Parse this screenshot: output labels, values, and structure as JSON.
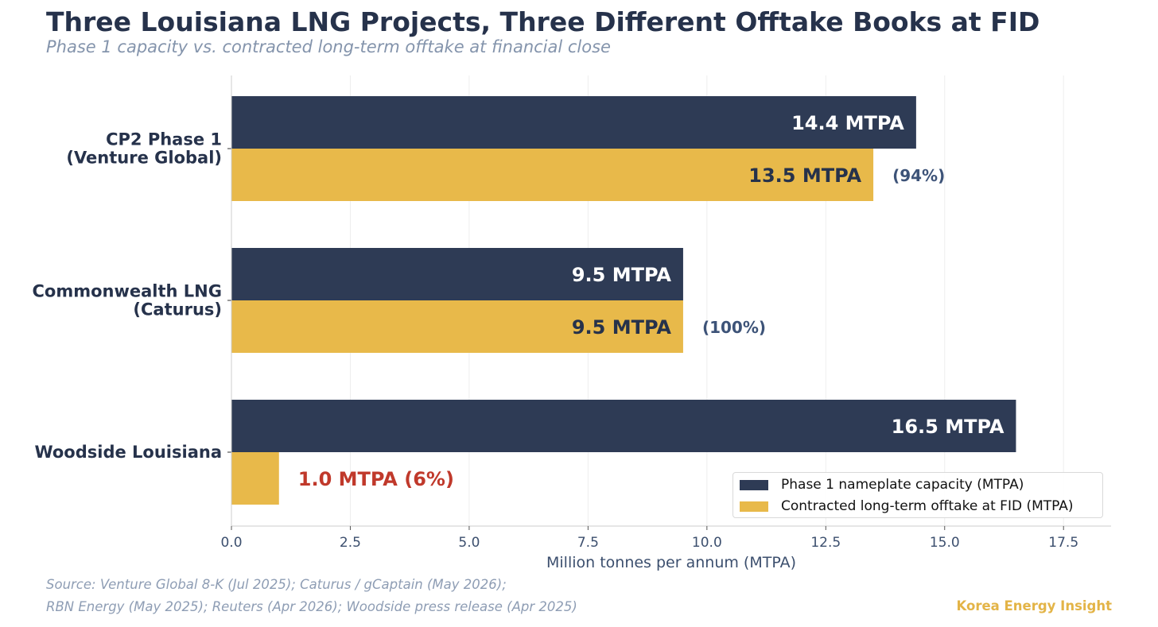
{
  "title": "Three Louisiana LNG Projects, Three Different Offtake Books at FID",
  "subtitle": "Phase 1 capacity vs. contracted long-term offtake at financial close",
  "source_line1": "Source: Venture Global 8-K (Jul 2025); Caturus / gCaptain (May 2026);",
  "source_line2": "RBN Energy (May 2025); Reuters (Apr 2026); Woodside press release (Apr 2025)",
  "brand": "Korea Energy Insight",
  "colors": {
    "capacity": "#2e3b55",
    "offtake": "#e8b94a",
    "pct_label": "#3d5378",
    "highlight": "#c0392b",
    "axis_text": "#3c4f6e",
    "category_text": "#26324b"
  },
  "chart_data": {
    "type": "bar",
    "orientation": "horizontal",
    "categories": [
      [
        "CP2 Phase 1",
        "(Venture Global)"
      ],
      [
        "Commonwealth LNG",
        "(Caturus)"
      ],
      [
        "Woodside Louisiana"
      ]
    ],
    "series": [
      {
        "name": "Phase 1 nameplate capacity (MTPA)",
        "values": [
          14.4,
          9.5,
          16.5
        ],
        "labels": [
          "14.4 MTPA",
          "9.5 MTPA",
          "16.5 MTPA"
        ]
      },
      {
        "name": "Contracted long-term offtake at FID (MTPA)",
        "values": [
          13.5,
          9.5,
          1.0
        ],
        "labels": [
          "13.5 MTPA",
          "9.5 MTPA",
          "1.0 MTPA  (6%)"
        ],
        "pct_labels": [
          "(94%)",
          "(100%)",
          ""
        ]
      }
    ],
    "xlabel": "Million tonnes per annum (MTPA)",
    "xlim": [
      0,
      18.5
    ],
    "xticks": [
      0,
      2.5,
      5,
      7.5,
      10,
      12.5,
      15,
      17.5
    ],
    "xtick_labels": [
      "0.0",
      "2.5",
      "5.0",
      "7.5",
      "10.0",
      "12.5",
      "15.0",
      "17.5"
    ],
    "grid": "vertical",
    "legend_position": "lower-right"
  }
}
